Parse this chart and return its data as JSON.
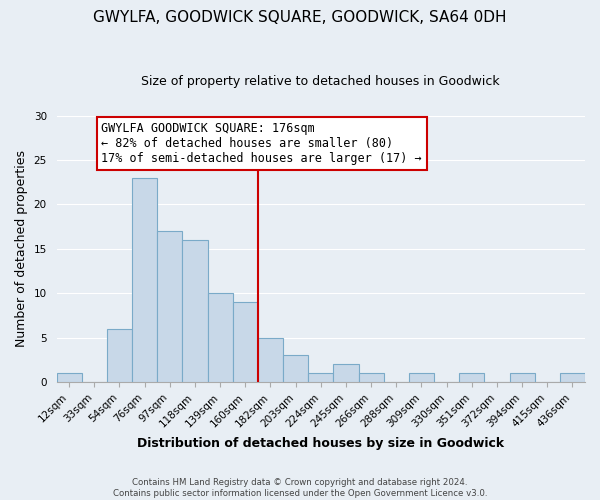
{
  "title": "GWYLFA, GOODWICK SQUARE, GOODWICK, SA64 0DH",
  "subtitle": "Size of property relative to detached houses in Goodwick",
  "xlabel": "Distribution of detached houses by size in Goodwick",
  "ylabel": "Number of detached properties",
  "bin_labels": [
    "12sqm",
    "33sqm",
    "54sqm",
    "76sqm",
    "97sqm",
    "118sqm",
    "139sqm",
    "160sqm",
    "182sqm",
    "203sqm",
    "224sqm",
    "245sqm",
    "266sqm",
    "288sqm",
    "309sqm",
    "330sqm",
    "351sqm",
    "372sqm",
    "394sqm",
    "415sqm",
    "436sqm"
  ],
  "bar_values": [
    1,
    0,
    6,
    23,
    17,
    16,
    10,
    9,
    5,
    3,
    1,
    2,
    1,
    0,
    1,
    0,
    1,
    0,
    1,
    0,
    1
  ],
  "bar_color": "#c8d8e8",
  "bar_edge_color": "#7aaac8",
  "vline_x": 8,
  "vline_color": "#cc0000",
  "ylim": [
    0,
    30
  ],
  "yticks": [
    0,
    5,
    10,
    15,
    20,
    25,
    30
  ],
  "annotation_title": "GWYLFA GOODWICK SQUARE: 176sqm",
  "annotation_line1": "← 82% of detached houses are smaller (80)",
  "annotation_line2": "17% of semi-detached houses are larger (17) →",
  "annotation_box_color": "#ffffff",
  "annotation_box_edge": "#cc0000",
  "footer_line1": "Contains HM Land Registry data © Crown copyright and database right 2024.",
  "footer_line2": "Contains public sector information licensed under the Open Government Licence v3.0.",
  "background_color": "#e8eef4",
  "plot_background": "#e8eef4",
  "grid_color": "#ffffff",
  "title_fontsize": 11,
  "subtitle_fontsize": 9,
  "ylabel_fontsize": 9,
  "xlabel_fontsize": 9,
  "tick_fontsize": 7.5,
  "ann_fontsize": 8.5
}
